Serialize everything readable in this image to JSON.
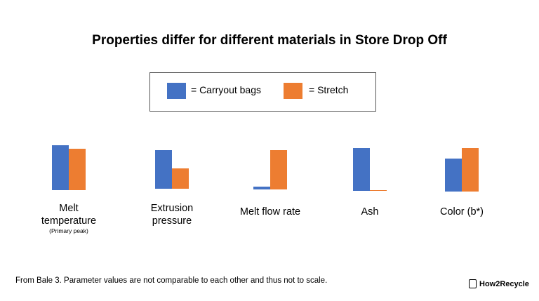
{
  "title": "Properties differ for different materials in Store Drop Off",
  "legend": [
    {
      "label": "= Carryout bags",
      "color": "#4472c4"
    },
    {
      "label": "= Stretch",
      "color": "#ed7d31"
    }
  ],
  "chart_data": [
    {
      "type": "bar",
      "title": "Melt temperature",
      "subtitle": "(Primary peak)",
      "categories": [
        null,
        null
      ],
      "values": [
        64,
        59
      ],
      "colors": [
        "#4472c4",
        "#ed7d31"
      ],
      "ylim": [
        0,
        70
      ]
    },
    {
      "type": "bar",
      "title": "Extrusion pressure",
      "categories": [
        null,
        null
      ],
      "values": [
        55,
        29
      ],
      "colors": [
        "#4472c4",
        "#ed7d31"
      ],
      "ylim": [
        0,
        70
      ]
    },
    {
      "type": "bar",
      "title": "Melt flow rate",
      "categories": [
        null,
        null
      ],
      "values": [
        4,
        56
      ],
      "colors": [
        "#4472c4",
        "#ed7d31"
      ],
      "ylim": [
        0,
        70
      ]
    },
    {
      "type": "bar",
      "title": "Ash",
      "categories": [
        null,
        null
      ],
      "values": [
        61,
        1
      ],
      "colors": [
        "#4472c4",
        "#ed7d31"
      ],
      "ylim": [
        0,
        70
      ]
    },
    {
      "type": "bar",
      "title": "Color (b*)",
      "categories": [
        null,
        null
      ],
      "values": [
        47,
        62
      ],
      "colors": [
        "#4472c4",
        "#ed7d31"
      ],
      "ylim": [
        0,
        70
      ]
    }
  ],
  "footnote": "From Bale 3. Parameter values are not comparable to each other and thus not to scale.",
  "logo": "How2Recycle"
}
